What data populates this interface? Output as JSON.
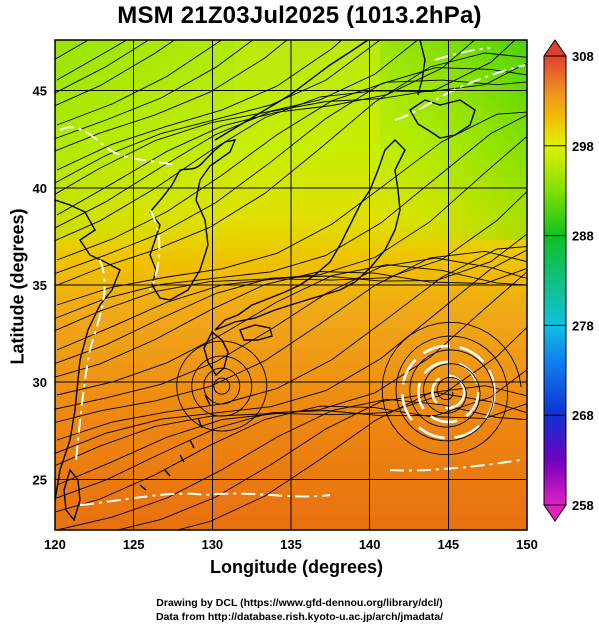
{
  "title": "MSM 21Z03Jul2025 (1013.2hPa)",
  "xlabel": "Longitude (degrees)",
  "ylabel": "Latitude  (degrees)",
  "credit_line1": "Drawing by DCL (https://www.gfd-dennou.org/library/dcl/)",
  "credit_line2": "Data from http://database.rish.kyoto-u.ac.jp/arch/jmadata/",
  "colors": {
    "cool": "#c8f000",
    "warm": "#ee8a10",
    "hot": "#e86a10",
    "land_line": "#000000",
    "contour": "#ffffff"
  },
  "chart_data": {
    "type": "heatmap",
    "field": "temperature with streamlines",
    "xlim": [
      120,
      150
    ],
    "ylim": [
      22.4,
      47.6
    ],
    "x_ticks": [
      120,
      125,
      130,
      135,
      140,
      145,
      150
    ],
    "y_ticks": [
      25,
      30,
      35,
      40,
      45
    ],
    "grid": true,
    "colorbar": {
      "min": 258,
      "max": 308,
      "tick_labels": [
        "308",
        "298",
        "288",
        "278",
        "268",
        "258"
      ],
      "tick_values": [
        308,
        298,
        288,
        278,
        268,
        258
      ],
      "stops": [
        {
          "v": 258,
          "c": "#e020c0"
        },
        {
          "v": 263,
          "c": "#7000c0"
        },
        {
          "v": 268,
          "c": "#1030d0"
        },
        {
          "v": 274,
          "c": "#1080f0"
        },
        {
          "v": 278,
          "c": "#10c0e0"
        },
        {
          "v": 283,
          "c": "#10c080"
        },
        {
          "v": 288,
          "c": "#10c020"
        },
        {
          "v": 293,
          "c": "#80e000"
        },
        {
          "v": 298,
          "c": "#e0f000"
        },
        {
          "v": 301,
          "c": "#f0c000"
        },
        {
          "v": 304,
          "c": "#f09020"
        },
        {
          "v": 308,
          "c": "#e04030"
        }
      ]
    },
    "vortex_center": [
      145,
      29.5
    ],
    "secondary_vortex": [
      130.6,
      29.8
    ]
  }
}
